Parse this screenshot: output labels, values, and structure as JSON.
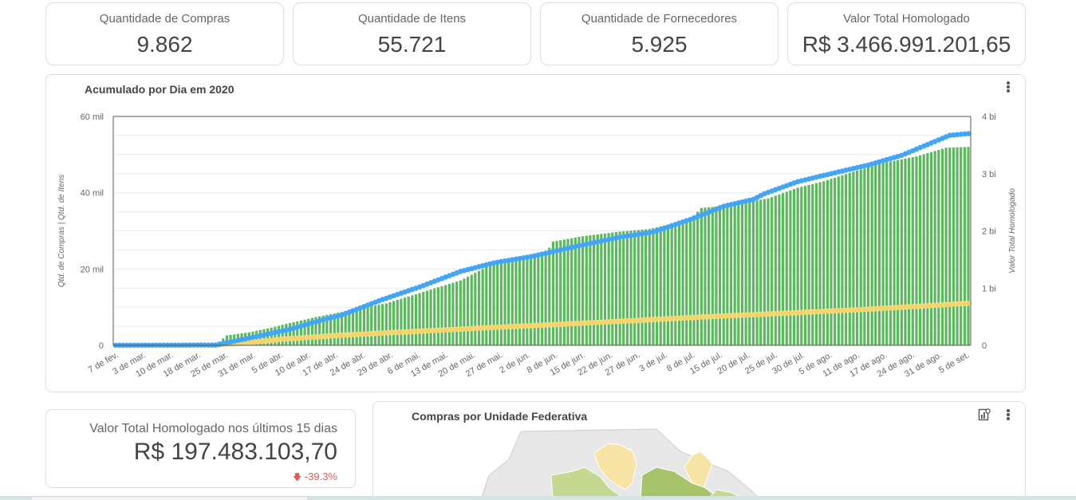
{
  "kpis": [
    {
      "label": "Quantidade de Compras",
      "value": "9.862"
    },
    {
      "label": "Quantidade de Itens",
      "value": "55.721"
    },
    {
      "label": "Quantidade de Fornecedores",
      "value": "5.925"
    },
    {
      "label": "Valor Total Homologado",
      "value": "R$ 3.466.991.201,65"
    }
  ],
  "main_chart": {
    "title": "Acumulado por Dia em 2020",
    "menu_icon": "kebab-vertical-icon"
  },
  "chart_data": {
    "type": "bar",
    "title": "Acumulado por Dia em 2020",
    "left_axis_label": "Qtd. de Compras | Qtd. de Itens",
    "right_axis_label": "Valor Total Homologado",
    "left_ticks": [
      "0",
      "20 mil",
      "40 mil",
      "60 mil"
    ],
    "right_ticks": [
      "0",
      "1 bi",
      "2 bi",
      "3 bi",
      "4 bi"
    ],
    "ylim_left": [
      0,
      60000
    ],
    "ylim_right": [
      0,
      4000000000
    ],
    "grid": true,
    "x_tick_labels": [
      "7 de fev.",
      "3 de mar.",
      "10 de mar.",
      "18 de mar.",
      "25 de mar.",
      "31 de mar.",
      "5 de abr.",
      "10 de abr.",
      "17 de abr.",
      "24 de abr.",
      "29 de abr.",
      "6 de mai.",
      "13 de mai.",
      "20 de mai.",
      "27 de mai.",
      "2 de jun.",
      "8 de jun.",
      "15 de jun.",
      "22 de jun.",
      "27 de jun.",
      "3 de jul.",
      "8 de jul.",
      "15 de jul.",
      "20 de jul.",
      "25 de jul.",
      "30 de jul.",
      "5 de ago.",
      "11 de ago.",
      "17 de ago.",
      "24 de ago.",
      "31 de ago.",
      "5 de set."
    ],
    "series": [
      {
        "name": "Qtd. de Itens",
        "type": "bar",
        "axis": "left",
        "color": "#5cb85c",
        "anchors": [
          [
            0,
            0
          ],
          [
            27,
            200
          ],
          [
            30,
            2600
          ],
          [
            36,
            3400
          ],
          [
            41,
            4400
          ],
          [
            46,
            5600
          ],
          [
            54,
            7400
          ],
          [
            62,
            8900
          ],
          [
            73,
            11000
          ],
          [
            83,
            14000
          ],
          [
            93,
            17000
          ],
          [
            100,
            20500
          ],
          [
            108,
            23000
          ],
          [
            116,
            24000
          ],
          [
            118,
            27200
          ],
          [
            126,
            28600
          ],
          [
            136,
            29800
          ],
          [
            144,
            30500
          ],
          [
            155,
            33000
          ],
          [
            158,
            36000
          ],
          [
            164,
            36500
          ],
          [
            176,
            38500
          ],
          [
            184,
            41300
          ],
          [
            191,
            43000
          ],
          [
            199,
            45500
          ],
          [
            208,
            48000
          ],
          [
            216,
            49500
          ],
          [
            224,
            51800
          ],
          [
            230,
            52000
          ]
        ]
      },
      {
        "name": "Qtd. de Compras",
        "type": "line",
        "axis": "left",
        "color": "#f6d56b",
        "anchors": [
          [
            0,
            0
          ],
          [
            27,
            0
          ],
          [
            35,
            600
          ],
          [
            45,
            1600
          ],
          [
            60,
            2600
          ],
          [
            80,
            3600
          ],
          [
            100,
            4600
          ],
          [
            120,
            5500
          ],
          [
            140,
            6500
          ],
          [
            160,
            7500
          ],
          [
            180,
            8400
          ],
          [
            200,
            9300
          ],
          [
            230,
            11000
          ]
        ]
      },
      {
        "name": "Valor Total Homologado",
        "type": "line",
        "axis": "right",
        "color": "#42a5f5",
        "anchors": [
          [
            0,
            0
          ],
          [
            27,
            5000000
          ],
          [
            37,
            140000000
          ],
          [
            47,
            280000000
          ],
          [
            55,
            430000000
          ],
          [
            61,
            530000000
          ],
          [
            72,
            800000000
          ],
          [
            82,
            1020000000
          ],
          [
            93,
            1290000000
          ],
          [
            102,
            1440000000
          ],
          [
            112,
            1550000000
          ],
          [
            125,
            1740000000
          ],
          [
            136,
            1890000000
          ],
          [
            145,
            1980000000
          ],
          [
            155,
            2200000000
          ],
          [
            164,
            2430000000
          ],
          [
            172,
            2550000000
          ],
          [
            175,
            2650000000
          ],
          [
            184,
            2860000000
          ],
          [
            193,
            3000000000
          ],
          [
            203,
            3150000000
          ],
          [
            212,
            3320000000
          ],
          [
            225,
            3670000000
          ],
          [
            230,
            3700000000
          ]
        ]
      }
    ]
  },
  "summary": {
    "label": "Valor Total Homologado nos últimos 15 dias",
    "value": "R$ 197.483.103,70",
    "delta": "-39.3%",
    "delta_icon": "arrow-down-icon",
    "delta_color": "#e05a5a"
  },
  "map_panel": {
    "title": "Compras por Unidade Federativa",
    "chart_toggle_icon": "chart-settings-icon",
    "menu_icon": "kebab-vertical-icon",
    "fill_colors": [
      "#c4d890",
      "#f7e3a3",
      "#a8c46a",
      "#e7e7e7"
    ]
  }
}
